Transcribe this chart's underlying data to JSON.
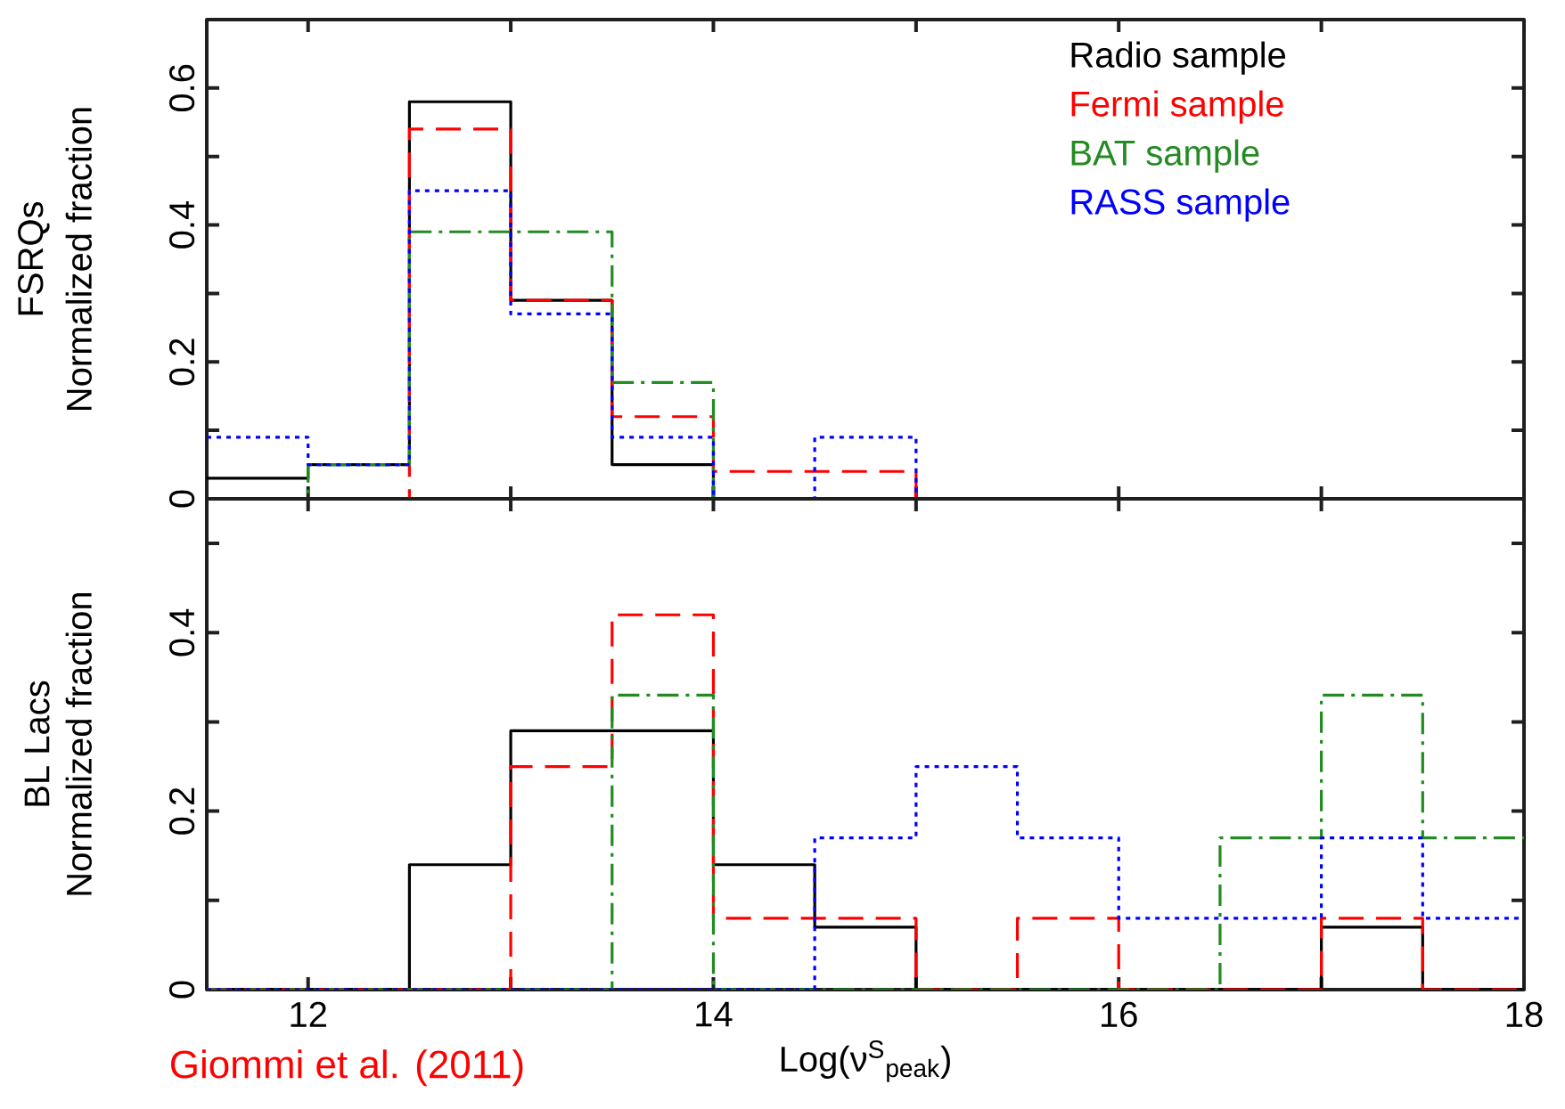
{
  "chart_data": [
    {
      "type": "histogram",
      "title": "FSRQs",
      "ylabel": "Normalized fraction",
      "bins": [
        11.5,
        12,
        12.5,
        13,
        13.5,
        14,
        14.5,
        15,
        15.5,
        16,
        16.5,
        17,
        17.5,
        18
      ],
      "series": [
        {
          "name": "Radio sample",
          "color": "#000000",
          "line_style": "solid",
          "values": [
            0.03,
            0.05,
            0.58,
            0.29,
            0.05,
            0,
            0,
            0,
            0,
            0,
            0,
            0,
            0
          ]
        },
        {
          "name": "Fermi sample",
          "color": "#ff0000",
          "line_style": "dashed",
          "values": [
            0,
            0,
            0.54,
            0.29,
            0.12,
            0.04,
            0.04,
            0,
            0,
            0,
            0,
            0,
            0
          ]
        },
        {
          "name": "BAT sample",
          "color": "#228b22",
          "line_style": "dashdot",
          "values": [
            0,
            0.05,
            0.39,
            0.39,
            0.17,
            0,
            0,
            0,
            0,
            0,
            0,
            0,
            0
          ]
        },
        {
          "name": "RASS sample",
          "color": "#0000ff",
          "line_style": "dotted",
          "values": [
            0.09,
            0.05,
            0.45,
            0.27,
            0.09,
            0,
            0.09,
            0,
            0,
            0,
            0,
            0,
            0
          ]
        }
      ],
      "xlim": [
        11.5,
        18
      ],
      "xticks": [
        12,
        {
          "value": 13,
          "label": null
        },
        14,
        {
          "value": 15,
          "label": null
        },
        16,
        {
          "value": 17,
          "label": null
        },
        18
      ],
      "ylim": [
        0,
        0.7
      ],
      "yticks": [
        0,
        {
          "value": 0.1,
          "label": null
        },
        0.2,
        {
          "value": 0.3,
          "label": null
        },
        0.4,
        {
          "value": 0.5,
          "label": null
        },
        0.6
      ],
      "tick_labels": "y",
      "legend": "top right",
      "grid": false
    },
    {
      "type": "histogram",
      "title": "BL Lacs",
      "ylabel": "Normalized fraction",
      "xlabel": "Log(ν$^{S}$$_{peak}$)",
      "bins": [
        11.5,
        12,
        12.5,
        13,
        13.5,
        14,
        14.5,
        15,
        15.5,
        16,
        16.5,
        17,
        17.5,
        18
      ],
      "series": [
        {
          "color": "#000000",
          "line_style": "solid",
          "values": [
            0,
            0,
            0.14,
            0.29,
            0.29,
            0.14,
            0.07,
            0,
            0,
            0,
            0,
            0.07,
            0
          ]
        },
        {
          "color": "#ff0000",
          "line_style": "dashed",
          "values": [
            0,
            0,
            0,
            0.25,
            0.42,
            0.08,
            0.08,
            0,
            0.08,
            0,
            0,
            0.08,
            0
          ]
        },
        {
          "color": "#228b22",
          "line_style": "dashdot",
          "values": [
            0,
            0,
            0,
            0,
            0.33,
            0,
            0,
            0,
            0,
            0,
            0.17,
            0.33,
            0.17
          ]
        },
        {
          "color": "#0000ff",
          "line_style": "dotted",
          "values": [
            0,
            0,
            0,
            0,
            0,
            0,
            0.17,
            0.25,
            0.17,
            0.08,
            0.08,
            0.17,
            0.08
          ]
        }
      ],
      "xlim": [
        11.5,
        18
      ],
      "xticks": [
        12,
        {
          "value": 13,
          "label": null
        },
        14,
        {
          "value": 15,
          "label": null
        },
        16,
        {
          "value": 17,
          "label": null
        },
        18
      ],
      "ylim": [
        0,
        0.55
      ],
      "yticks": [
        0,
        {
          "value": 0.1,
          "label": null
        },
        0.2,
        {
          "value": 0.3,
          "label": null
        },
        0.4,
        {
          "value": 0.5,
          "label": null
        }
      ],
      "annotations": [
        "Giommi et al. (2011)"
      ],
      "grid": false
    }
  ]
}
